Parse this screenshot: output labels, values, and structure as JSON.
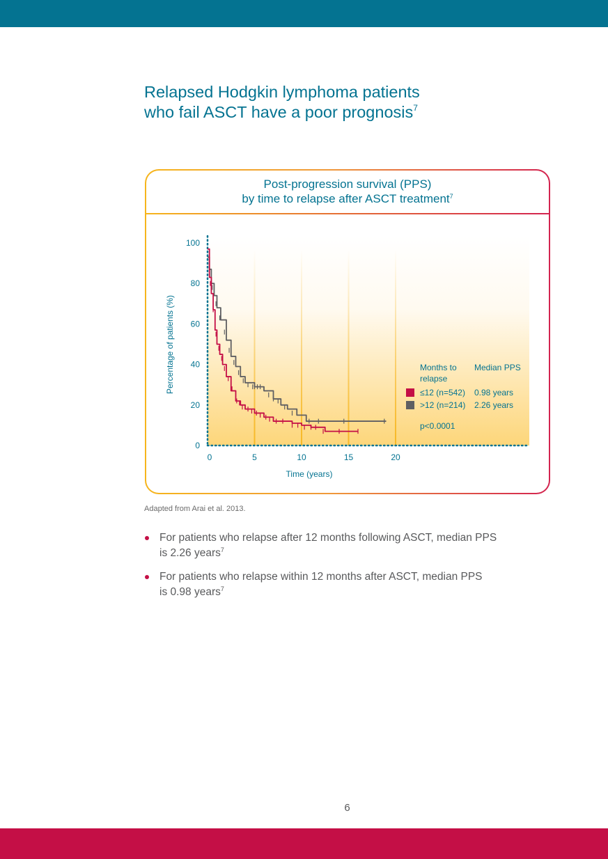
{
  "header": {
    "title_line1": "Relapsed Hodgkin lymphoma patients",
    "title_line2": "who fail ASCT have a poor prognosis",
    "title_ref": "7"
  },
  "chart_box": {
    "title_line1": "Post-progression survival (PPS)",
    "title_line2": "by time to relapse after ASCT treatment",
    "title_ref": "7"
  },
  "chart_data": {
    "type": "line",
    "title": "Post-progression survival (PPS) by time to relapse after ASCT treatment",
    "xlabel": "Time (years)",
    "ylabel": "Percentage of patients (%)",
    "xlim": [
      0,
      20
    ],
    "ylim": [
      0,
      100
    ],
    "x_ticks": [
      0,
      5,
      10,
      15,
      20
    ],
    "y_ticks": [
      0,
      20,
      40,
      60,
      80,
      100
    ],
    "legend": {
      "placement": "right",
      "col1_header_line1": "Months to",
      "col1_header_line2": "relapse",
      "col2_header": "Median PPS",
      "note": "p<0.0001"
    },
    "series": [
      {
        "name": "≤12 (n=542)",
        "median": "0.98 years",
        "color": "#c40f46",
        "x": [
          0,
          0.2,
          0.4,
          0.6,
          0.8,
          1.0,
          1.3,
          1.6,
          2.0,
          2.5,
          3.0,
          3.5,
          4.0,
          5.0,
          6.0,
          7.0,
          8.0,
          9.0,
          10.0,
          11.0,
          12.0,
          12.5,
          16.0
        ],
        "y": [
          97,
          83,
          75,
          67,
          57,
          50,
          45,
          40,
          34,
          27,
          22,
          20,
          18,
          16,
          14,
          12,
          12,
          11,
          10,
          9,
          9,
          7,
          7
        ],
        "censor_x": [
          0.3,
          0.6,
          0.9,
          1.2,
          1.5,
          1.8,
          2.2,
          2.6,
          3.1,
          3.4,
          3.7,
          4.3,
          4.7,
          5.2,
          5.6,
          6.2,
          6.6,
          7.3,
          8.0,
          9.0,
          9.6,
          10.3,
          11.0,
          11.5,
          12.3,
          14.0,
          16.0
        ],
        "censor_y": [
          80,
          67,
          55,
          48,
          43,
          38,
          33,
          28,
          22,
          21,
          19,
          18,
          17,
          16,
          15,
          14,
          13,
          12,
          12,
          10,
          10,
          9,
          9,
          9,
          7,
          7,
          7
        ]
      },
      {
        "name": ">12 (n=214)",
        "median": "2.26 years",
        "color": "#5f5f62",
        "x": [
          0,
          0.2,
          0.4,
          0.7,
          1.0,
          1.4,
          2.0,
          2.5,
          3.0,
          3.5,
          4.0,
          5.0,
          6.0,
          7.0,
          7.8,
          8.5,
          9.5,
          10.0,
          10.5,
          11.0,
          19.0
        ],
        "y": [
          93,
          87,
          80,
          74,
          68,
          62,
          52,
          44,
          39,
          34,
          31,
          29,
          27,
          23,
          20,
          18,
          15,
          15,
          12,
          12,
          12
        ],
        "censor_x": [
          0.5,
          0.9,
          1.3,
          1.8,
          2.3,
          2.8,
          3.3,
          3.8,
          4.3,
          4.8,
          5.0,
          5.3,
          5.6,
          6.0,
          6.5,
          7.0,
          7.5,
          8.2,
          9.0,
          10.8,
          11.8,
          14.5,
          18.8
        ],
        "censor_y": [
          78,
          70,
          63,
          56,
          47,
          41,
          36,
          32,
          30,
          29,
          29,
          29,
          29,
          28,
          25,
          23,
          22,
          19,
          16,
          12,
          12,
          12,
          12
        ]
      }
    ]
  },
  "source": "Adapted from Arai et al. 2013.",
  "bullets": [
    {
      "line1": "For patients who relapse after 12 months following ASCT, median PPS",
      "line2": "is 2.26 years",
      "ref": "7"
    },
    {
      "line1": "For patients who relapse within 12 months after ASCT, median PPS",
      "line2": "is 0.98 years",
      "ref": "7"
    }
  ],
  "page_number": "6",
  "colors": {
    "teal": "#047391",
    "crimson": "#c40f46",
    "gray": "#5f5f62",
    "orange": "#f6b51c"
  }
}
